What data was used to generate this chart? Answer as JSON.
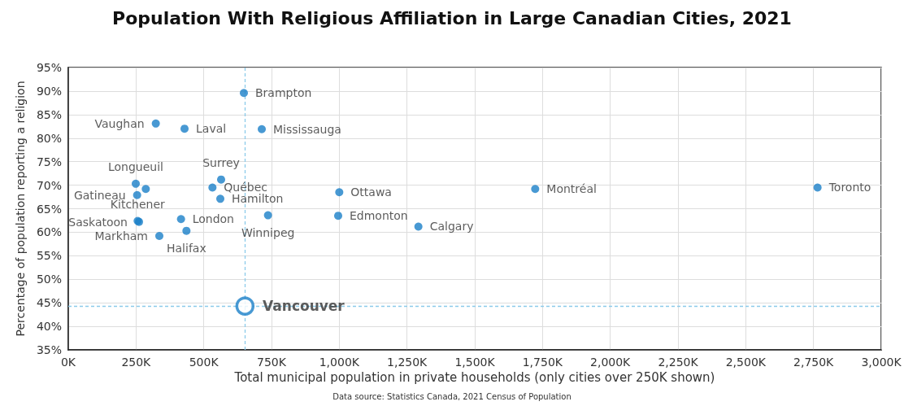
{
  "chart_data": {
    "type": "scatter",
    "title": "Population With Religious Affiliation in Large Canadian Cities, 2021",
    "xlabel": "Total municipal population in private households (only cities over 250K shown)",
    "ylabel": "Percentage of population reporting a religion",
    "annotations": [
      "Data source: Statistics Canada, 2021 Census of Population"
    ],
    "series": [
      {
        "color": "#1a7fc8",
        "x": [
          648,
          323,
          429,
          714,
          564,
          249,
          286,
          254,
          532,
          561,
          256,
          261,
          416,
          436,
          336,
          737,
          1000,
          996,
          1292,
          1723,
          2765
        ],
        "values": [
          89.6,
          83.1,
          82.0,
          81.9,
          71.2,
          70.3,
          69.2,
          67.9,
          69.5,
          67.1,
          62.4,
          62.2,
          62.8,
          60.3,
          59.2,
          63.6,
          68.5,
          63.5,
          61.2,
          69.2,
          69.5
        ],
        "value_labels": [
          "Brampton",
          "Vaughan",
          "Laval",
          "Mississauga",
          "Surrey",
          "Longueuil",
          null,
          "Gatineau",
          "Québec",
          "Hamilton",
          "Kitchener",
          "Saskatoon",
          "London",
          "Halifax",
          "Markham",
          "Winnipeg",
          "Ottawa",
          "Edmonton",
          "Calgary",
          "Montréal",
          "Toronto"
        ]
      },
      {
        "color": "#1a7fc8",
        "x": [
          652
        ],
        "values": [
          44.3
        ],
        "value_labels": [
          "Vancouver"
        ]
      }
    ],
    "ref_lines": [
      {
        "axis": "x",
        "value": 652,
        "color": "#8ccbea",
        "line_style": "dashed"
      },
      {
        "axis": "y",
        "value": 44.3,
        "color": "#8ccbea",
        "line_style": "dashed"
      }
    ],
    "xlim": [
      0,
      3000
    ],
    "xticks": [
      {
        "value": 0,
        "label": "0K"
      },
      {
        "value": 250,
        "label": "250K"
      },
      {
        "value": 500,
        "label": "500K"
      },
      {
        "value": 750,
        "label": "750K"
      },
      {
        "value": 1000,
        "label": "1,000K"
      },
      {
        "value": 1250,
        "label": "1,250K"
      },
      {
        "value": 1500,
        "label": "1,500K"
      },
      {
        "value": 1750,
        "label": "1,750K"
      },
      {
        "value": 2000,
        "label": "2,000K"
      },
      {
        "value": 2250,
        "label": "2,250K"
      },
      {
        "value": 2500,
        "label": "2,500K"
      },
      {
        "value": 2750,
        "label": "2,750K"
      },
      {
        "value": 3000,
        "label": "3,000K"
      }
    ],
    "ylim": [
      35,
      95
    ],
    "yticks": [
      {
        "value": 35,
        "label": "35%"
      },
      {
        "value": 40,
        "label": "40%"
      },
      {
        "value": 45,
        "label": "45%"
      },
      {
        "value": 50,
        "label": "50%"
      },
      {
        "value": 55,
        "label": "55%"
      },
      {
        "value": 60,
        "label": "60%"
      },
      {
        "value": 65,
        "label": "65%"
      },
      {
        "value": 70,
        "label": "70%"
      },
      {
        "value": 75,
        "label": "75%"
      },
      {
        "value": 80,
        "label": "80%"
      },
      {
        "value": 85,
        "label": "85%"
      },
      {
        "value": 90,
        "label": "90%"
      },
      {
        "value": 95,
        "label": "95%"
      }
    ],
    "grid": true,
    "marker": "circle"
  }
}
